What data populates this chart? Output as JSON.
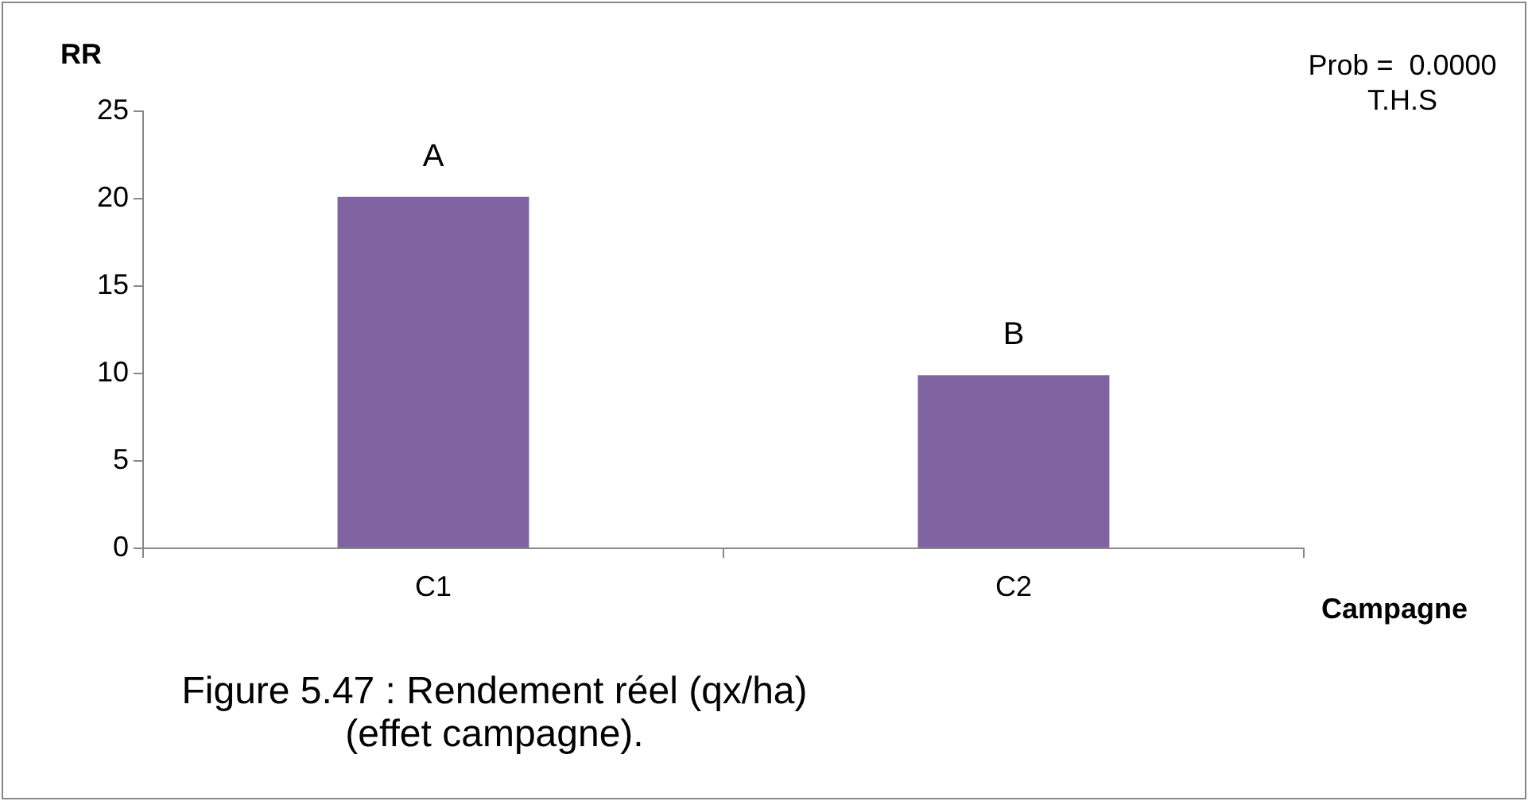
{
  "chart_data": {
    "type": "bar",
    "title": "Figure 5.47 : Rendement réel (qx/ha)\n(effet campagne).",
    "xlabel": "Campagne",
    "ylabel": "RR",
    "categories": [
      "C1",
      "C2"
    ],
    "series": [
      {
        "color": "#8064a2",
        "values": [
          20.1,
          9.9
        ]
      }
    ],
    "ylim": [
      0,
      25
    ],
    "yticks": [
      0,
      5,
      10,
      15,
      20,
      25
    ],
    "grid": false,
    "legend": false,
    "annotations": [
      {
        "text": "A",
        "x": "C1",
        "y": 20.1
      },
      {
        "text": "B",
        "x": "C2",
        "y": 9.9
      },
      "Prob =  0.0000",
      "T.H.S"
    ]
  }
}
